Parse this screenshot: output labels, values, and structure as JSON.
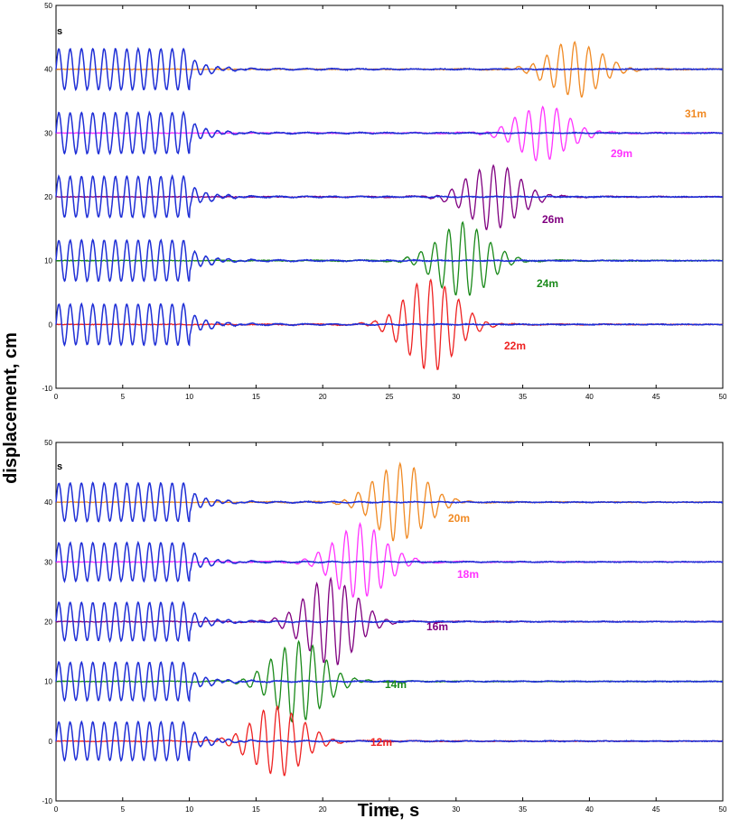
{
  "chart_data": [
    {
      "type": "line",
      "panel": "top",
      "xlabel": "Time, s",
      "ylabel": "displacement, cm",
      "xlim": [
        0,
        50
      ],
      "ylim": [
        -10,
        50
      ],
      "xticks": [
        "0",
        "5",
        "10",
        "15",
        "20",
        "25",
        "30",
        "35",
        "40",
        "45",
        "50"
      ],
      "yticks": [
        "-10",
        "0",
        "10",
        "20",
        "30",
        "40",
        "50"
      ],
      "corner_label": "s",
      "grid": false,
      "series": [
        {
          "name": "31m",
          "offset": 40,
          "color": "#f08a24",
          "peak_time": 38.9,
          "peak_amplitude": 4.3
        },
        {
          "name": "29m",
          "offset": 30,
          "color": "#ff33ff",
          "peak_time": 36.5,
          "peak_amplitude": 4.3
        },
        {
          "name": "26m",
          "offset": 20,
          "color": "#800080",
          "peak_time": 32.8,
          "peak_amplitude": 5.1
        },
        {
          "name": "24m",
          "offset": 10,
          "color": "#1a8a1a",
          "peak_time": 30.5,
          "peak_amplitude": 5.8
        },
        {
          "name": "22m",
          "offset": 0,
          "color": "#ee2222",
          "peak_time": 28.1,
          "peak_amplitude": 7.2
        }
      ],
      "input_series": {
        "color": "#1f2fd6",
        "amplitude": 3.2,
        "period_s": 0.85,
        "end_time": 10
      }
    },
    {
      "type": "line",
      "panel": "bottom",
      "xlabel": "Time, s",
      "ylabel": "displacement, cm",
      "xlim": [
        0,
        50
      ],
      "ylim": [
        -10,
        50
      ],
      "xticks": [
        "0",
        "5",
        "10",
        "15",
        "20",
        "25",
        "30",
        "35",
        "40",
        "45",
        "50"
      ],
      "yticks": [
        "-10",
        "0",
        "10",
        "20",
        "30",
        "40",
        "50"
      ],
      "corner_label": "s",
      "grid": false,
      "series": [
        {
          "name": "20m",
          "offset": 40,
          "color": "#f08a24",
          "peak_time": 25.8,
          "peak_amplitude": 6.5
        },
        {
          "name": "18m",
          "offset": 30,
          "color": "#ff33ff",
          "peak_time": 22.8,
          "peak_amplitude": 6.2
        },
        {
          "name": "16m",
          "offset": 20,
          "color": "#800080",
          "peak_time": 20.6,
          "peak_amplitude": 7.3
        },
        {
          "name": "14m",
          "offset": 10,
          "color": "#1a8a1a",
          "peak_time": 18.2,
          "peak_amplitude": 6.8
        },
        {
          "name": "12m",
          "offset": 0,
          "color": "#ee2222",
          "peak_time": 16.6,
          "peak_amplitude": 5.8
        }
      ],
      "input_series": {
        "color": "#1f2fd6",
        "amplitude": 3.2,
        "period_s": 0.85,
        "end_time": 10
      }
    }
  ]
}
